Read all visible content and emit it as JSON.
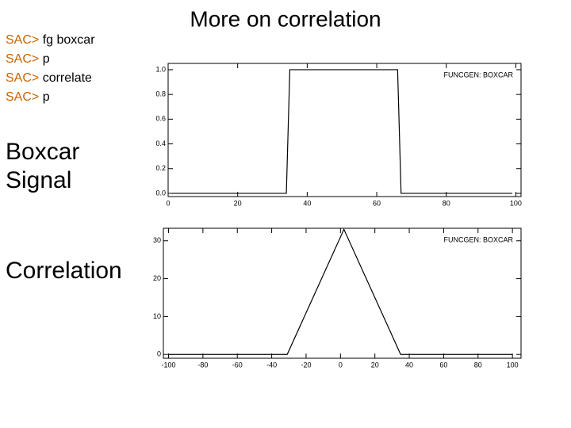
{
  "title": "More on correlation",
  "commands": [
    {
      "prompt": "SAC>",
      "text": "fg boxcar"
    },
    {
      "prompt": "SAC>",
      "text": "p"
    },
    {
      "prompt": "SAC>",
      "text": "correlate"
    },
    {
      "prompt": "SAC>",
      "text": "p"
    }
  ],
  "labels": [
    [
      "Boxcar",
      "Signal"
    ],
    [
      "Correlation"
    ]
  ],
  "chart_data": [
    {
      "type": "line",
      "annotation": "FUNCGEN: BOXCAR",
      "color": "#000000",
      "x": [
        1,
        34,
        35,
        66,
        67,
        99
      ],
      "values": [
        0,
        0,
        1,
        1,
        0,
        0
      ],
      "xlim": [
        0,
        101.5
      ],
      "ylim": [
        -0.026,
        1.051
      ],
      "xticks": [
        0,
        20,
        40,
        60,
        80,
        100
      ],
      "yticks": [
        {
          "value": 0,
          "label": "0.0"
        },
        {
          "value": 0.2,
          "label": "0.2"
        },
        {
          "value": 0.4,
          "label": "0.4"
        },
        {
          "value": 0.6,
          "label": "0.6"
        },
        {
          "value": 0.8,
          "label": "0.8"
        },
        {
          "value": 1,
          "label": "1.0"
        }
      ]
    },
    {
      "type": "line",
      "annotation": "FUNCGEN: BOXCAR",
      "color": "#000000",
      "x": [
        -100,
        -31,
        2,
        35,
        100
      ],
      "values": [
        0,
        0,
        33,
        0,
        0
      ],
      "xlim": [
        -103,
        105
      ],
      "ylim": [
        -1,
        33.3
      ],
      "xticks": [
        -100,
        -80,
        -60,
        -40,
        -20,
        0,
        20,
        40,
        60,
        80,
        100
      ],
      "yticks": [
        0,
        10,
        20,
        30
      ]
    }
  ]
}
